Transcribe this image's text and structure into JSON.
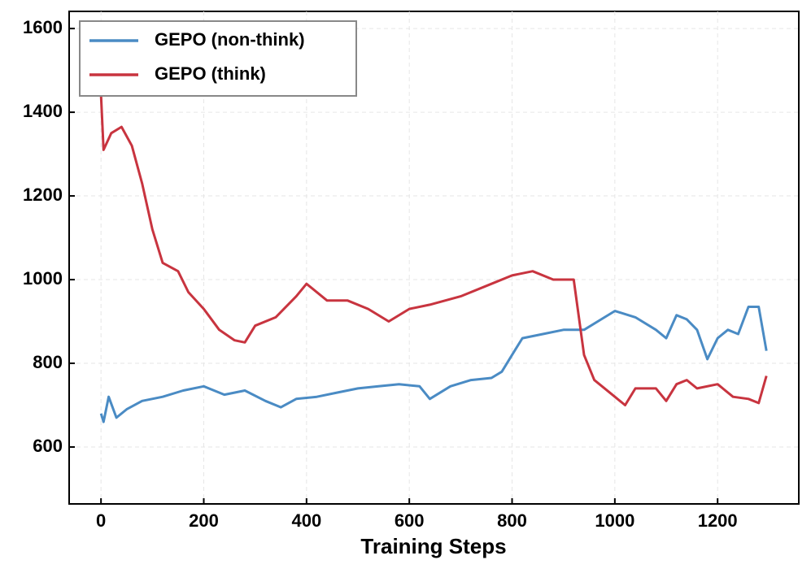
{
  "chart_data": {
    "type": "line",
    "xlabel": "Training Steps",
    "xlim": [
      -62,
      1358
    ],
    "xticks": [
      0,
      200,
      400,
      600,
      800,
      1000,
      1200
    ],
    "ylim": [
      464,
      1641
    ],
    "yticks": [
      600,
      800,
      1000,
      1200,
      1400,
      1600
    ],
    "grid": true,
    "legend": "upper left",
    "series": [
      {
        "name": "GEPO (non-think)",
        "color": "#4a8bc4",
        "x": [
          0,
          5,
          15,
          30,
          50,
          80,
          120,
          160,
          200,
          240,
          280,
          320,
          350,
          380,
          420,
          460,
          500,
          540,
          580,
          620,
          640,
          680,
          720,
          760,
          780,
          800,
          820,
          860,
          900,
          940,
          980,
          1000,
          1040,
          1080,
          1100,
          1120,
          1140,
          1160,
          1180,
          1200,
          1220,
          1240,
          1260,
          1280,
          1295
        ],
        "values": [
          680,
          660,
          720,
          670,
          690,
          710,
          720,
          735,
          745,
          725,
          735,
          710,
          695,
          715,
          720,
          730,
          740,
          745,
          750,
          745,
          715,
          745,
          760,
          765,
          780,
          820,
          860,
          870,
          880,
          880,
          910,
          925,
          910,
          880,
          860,
          915,
          905,
          880,
          810,
          860,
          880,
          870,
          935,
          935,
          830
        ]
      },
      {
        "name": "GEPO (think)",
        "color": "#c8343f",
        "x": [
          0,
          5,
          20,
          40,
          60,
          80,
          100,
          120,
          150,
          170,
          200,
          230,
          260,
          280,
          300,
          340,
          380,
          400,
          440,
          480,
          520,
          560,
          600,
          640,
          700,
          760,
          800,
          840,
          880,
          920,
          940,
          960,
          1000,
          1020,
          1040,
          1080,
          1100,
          1120,
          1140,
          1160,
          1200,
          1230,
          1260,
          1280,
          1295
        ],
        "values": [
          1440,
          1310,
          1350,
          1365,
          1320,
          1230,
          1120,
          1040,
          1020,
          970,
          930,
          880,
          855,
          850,
          890,
          910,
          960,
          990,
          950,
          950,
          930,
          900,
          930,
          940,
          960,
          990,
          1010,
          1020,
          1000,
          1000,
          820,
          760,
          720,
          700,
          740,
          740,
          710,
          750,
          760,
          740,
          750,
          720,
          715,
          705,
          770
        ]
      }
    ]
  }
}
